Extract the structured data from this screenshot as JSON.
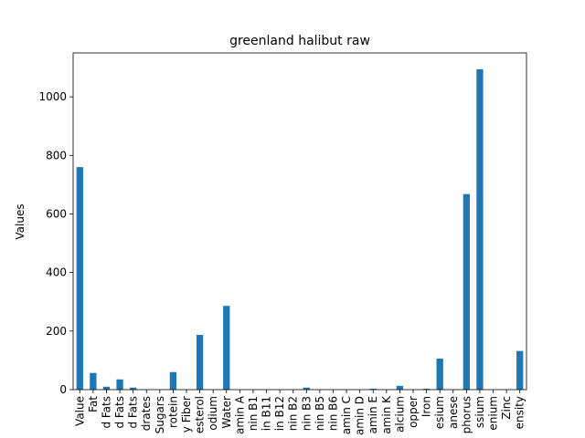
{
  "chart_data": {
    "type": "bar",
    "title": "greenland halibut raw",
    "xlabel": "",
    "ylabel": "Values",
    "ylim": [
      0,
      1150
    ],
    "yticks": [
      0,
      200,
      400,
      600,
      800,
      1000
    ],
    "grid": false,
    "legend": "none",
    "bar_color": "#1f77b4",
    "categories": [
      "Value",
      "Fat",
      "d Fats",
      "d Fats",
      "d Fats",
      "drates",
      "Sugars",
      "rotein",
      "y Fiber",
      "esterol",
      "odium",
      "Water",
      "amin A",
      "nin B1",
      "in B11",
      "in B12",
      "nin B2",
      "nin B3",
      "nin B5",
      "nin B6",
      "amin C",
      "amin D",
      "amin E",
      "amin K",
      "alcium",
      "opper",
      "Iron",
      "esium",
      "anese",
      "phorus",
      "ssium",
      "enium",
      "Zinc",
      "ensity"
    ],
    "values": [
      760,
      57,
      10,
      35,
      7,
      0,
      0,
      60,
      0,
      187,
      0,
      286,
      0,
      0,
      0,
      0,
      0,
      7,
      0,
      0,
      0,
      0,
      3,
      0,
      13,
      0,
      3,
      106,
      0,
      668,
      1094,
      0,
      0,
      132
    ]
  }
}
